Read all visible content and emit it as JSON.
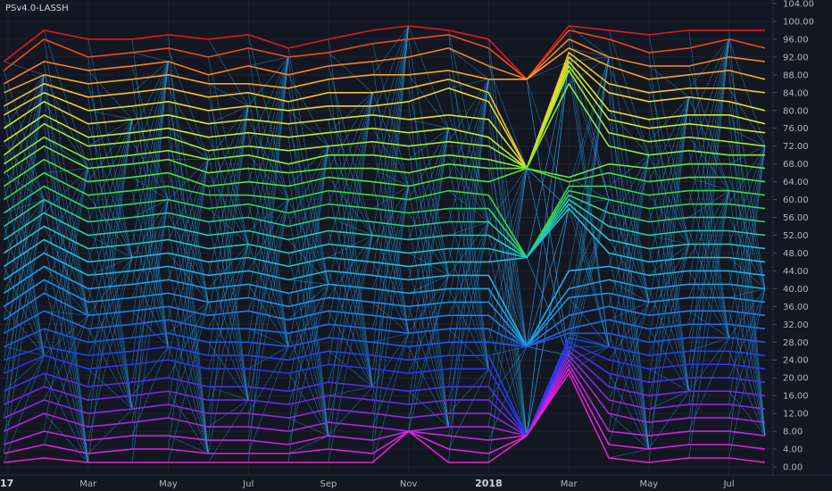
{
  "indicator": {
    "name": "PSv4.0-LASSH"
  },
  "chart_data": {
    "type": "line",
    "title": "",
    "xlabel": "",
    "ylabel": "",
    "ylim": [
      0,
      104
    ],
    "y_ticks": [
      "104.00",
      "100.00",
      "96.00",
      "92.00",
      "88.00",
      "84.00",
      "80.00",
      "76.00",
      "72.00",
      "68.00",
      "64.00",
      "60.00",
      "56.00",
      "52.00",
      "48.00",
      "44.00",
      "40.00",
      "36.00",
      "32.00",
      "28.00",
      "24.00",
      "20.00",
      "16.00",
      "12.00",
      "8.00",
      "4.00",
      "0.00"
    ],
    "x_ticks": [
      {
        "label": "17",
        "t": 0.0,
        "bold": true
      },
      {
        "label": "Mar",
        "t": 2.0,
        "bold": false
      },
      {
        "label": "May",
        "t": 4.0,
        "bold": false
      },
      {
        "label": "Jul",
        "t": 6.0,
        "bold": false
      },
      {
        "label": "Sep",
        "t": 8.0,
        "bold": false
      },
      {
        "label": "Nov",
        "t": 10.0,
        "bold": false
      },
      {
        "label": "2018",
        "t": 12.0,
        "bold": true
      },
      {
        "label": "Mar",
        "t": 14.0,
        "bold": false
      },
      {
        "label": "May",
        "t": 16.0,
        "bold": false
      },
      {
        "label": "Jul",
        "t": 18.0,
        "bold": false
      }
    ],
    "x_range": [
      -0.2,
      19.1
    ],
    "grid": true,
    "legend": "none",
    "background": "#131722",
    "rank_line_color": "#2e9ee8",
    "x": [
      -0.1,
      0.9,
      2.0,
      3.1,
      4.0,
      5.0,
      6.0,
      7.0,
      8.0,
      9.1,
      10.0,
      11.0,
      12.0,
      12.95,
      14.0,
      15.0,
      16.0,
      17.0,
      18.0,
      18.9
    ],
    "series": [
      {
        "values": [
          91,
          98,
          96,
          96,
          97,
          96,
          97,
          94,
          96,
          98,
          99,
          98,
          96,
          87,
          99,
          98,
          97,
          98,
          98,
          98
        ],
        "color": "#e01b1b"
      },
      {
        "values": [
          89,
          96,
          92,
          93,
          94,
          92,
          94,
          92,
          93,
          95,
          96,
          97,
          94,
          87,
          98,
          96,
          93,
          94,
          96,
          94
        ],
        "color": "#f04a1a"
      },
      {
        "values": [
          86,
          91,
          89,
          90,
          91,
          88,
          90,
          88,
          90,
          91,
          92,
          94,
          90,
          87,
          96,
          92,
          90,
          90,
          92,
          91
        ],
        "color": "#f6821f"
      },
      {
        "values": [
          84,
          88,
          86,
          87,
          88,
          86,
          86,
          85,
          87,
          88,
          88,
          89,
          87,
          87,
          94,
          90,
          87,
          88,
          89,
          87
        ],
        "color": "#f5a623"
      },
      {
        "values": [
          81,
          86,
          83,
          84,
          85,
          83,
          84,
          82,
          84,
          84,
          85,
          87,
          84,
          67,
          93,
          86,
          84,
          85,
          85,
          84
        ],
        "color": "#f2c12b"
      },
      {
        "values": [
          79,
          84,
          80,
          81,
          82,
          80,
          81,
          80,
          81,
          81,
          82,
          85,
          82,
          67,
          92,
          84,
          82,
          83,
          82,
          80
        ],
        "color": "#e9d62e"
      },
      {
        "values": [
          76,
          82,
          77,
          78,
          79,
          77,
          78,
          77,
          78,
          79,
          78,
          79,
          78,
          67,
          91,
          80,
          78,
          79,
          79,
          77
        ],
        "color": "#d8e32f"
      },
      {
        "values": [
          73,
          79,
          74,
          75,
          76,
          74,
          75,
          74,
          75,
          76,
          75,
          76,
          74,
          67,
          90,
          78,
          76,
          77,
          76,
          75
        ],
        "color": "#c5e82f"
      },
      {
        "values": [
          70,
          77,
          72,
          73,
          74,
          71,
          72,
          71,
          72,
          73,
          72,
          73,
          72,
          67,
          89,
          75,
          73,
          74,
          73,
          72
        ],
        "color": "#a8e631"
      },
      {
        "values": [
          68,
          74,
          69,
          70,
          71,
          69,
          70,
          68,
          70,
          70,
          69,
          70,
          69,
          67,
          86,
          72,
          70,
          71,
          70,
          70
        ],
        "color": "#8fe434"
      },
      {
        "values": [
          66,
          72,
          67,
          68,
          69,
          66,
          67,
          66,
          67,
          67,
          66,
          68,
          67,
          67,
          65,
          68,
          67,
          68,
          68,
          67
        ],
        "color": "#72e038"
      },
      {
        "values": [
          63,
          69,
          64,
          65,
          66,
          63,
          64,
          63,
          65,
          64,
          63,
          65,
          64,
          67,
          64,
          66,
          64,
          65,
          65,
          64
        ],
        "color": "#55dc3c"
      },
      {
        "values": [
          60,
          66,
          61,
          62,
          63,
          61,
          61,
          60,
          62,
          61,
          60,
          62,
          61,
          47,
          63,
          63,
          61,
          62,
          62,
          61
        ],
        "color": "#3dd44a"
      },
      {
        "values": [
          57,
          63,
          58,
          59,
          60,
          58,
          59,
          57,
          59,
          58,
          57,
          58,
          58,
          47,
          62,
          60,
          58,
          59,
          59,
          58
        ],
        "color": "#2fd266"
      },
      {
        "values": [
          54,
          60,
          55,
          56,
          57,
          55,
          56,
          54,
          56,
          55,
          54,
          55,
          55,
          47,
          61,
          57,
          55,
          56,
          56,
          55
        ],
        "color": "#2bd08a"
      },
      {
        "values": [
          51,
          57,
          52,
          53,
          54,
          52,
          53,
          51,
          53,
          52,
          51,
          52,
          52,
          47,
          60,
          54,
          52,
          53,
          53,
          52
        ],
        "color": "#27cca8"
      },
      {
        "values": [
          48,
          54,
          49,
          50,
          51,
          49,
          50,
          48,
          50,
          49,
          48,
          49,
          49,
          47,
          59,
          51,
          49,
          50,
          50,
          49
        ],
        "color": "#24c8c4"
      },
      {
        "values": [
          45,
          51,
          46,
          47,
          48,
          46,
          47,
          45,
          47,
          46,
          45,
          46,
          46,
          47,
          58,
          48,
          46,
          47,
          47,
          46
        ],
        "color": "#22c0d8"
      },
      {
        "values": [
          42,
          48,
          43,
          44,
          45,
          43,
          44,
          42,
          44,
          43,
          42,
          43,
          43,
          27,
          44,
          45,
          43,
          44,
          44,
          43
        ],
        "color": "#20b2e0"
      },
      {
        "values": [
          39,
          45,
          40,
          41,
          42,
          40,
          41,
          39,
          41,
          40,
          39,
          40,
          40,
          27,
          40,
          42,
          40,
          41,
          41,
          40
        ],
        "color": "#1fa2e3"
      },
      {
        "values": [
          36,
          42,
          37,
          38,
          39,
          37,
          38,
          36,
          38,
          37,
          36,
          37,
          37,
          27,
          38,
          39,
          37,
          38,
          38,
          37
        ],
        "color": "#1f90e6"
      },
      {
        "values": [
          33,
          39,
          34,
          35,
          36,
          34,
          35,
          33,
          35,
          34,
          33,
          34,
          34,
          27,
          34,
          36,
          34,
          35,
          35,
          34
        ],
        "color": "#1f7ee8"
      },
      {
        "values": [
          30,
          35,
          31,
          32,
          33,
          31,
          31,
          30,
          32,
          31,
          30,
          31,
          31,
          27,
          31,
          33,
          31,
          32,
          32,
          31
        ],
        "color": "#1f6ceb"
      },
      {
        "values": [
          27,
          31,
          28,
          29,
          30,
          28,
          28,
          27,
          29,
          28,
          27,
          28,
          28,
          27,
          30,
          30,
          28,
          29,
          29,
          28
        ],
        "color": "#1f58ee"
      },
      {
        "values": [
          24,
          27,
          25,
          26,
          27,
          25,
          25,
          24,
          26,
          25,
          24,
          25,
          25,
          7,
          29,
          27,
          25,
          26,
          26,
          25
        ],
        "color": "#1f44f0"
      },
      {
        "values": [
          21,
          25,
          22,
          23,
          24,
          22,
          22,
          21,
          23,
          22,
          21,
          22,
          22,
          7,
          28,
          24,
          22,
          23,
          23,
          22
        ],
        "color": "#2a34f0"
      },
      {
        "values": [
          17,
          21,
          18,
          19,
          20,
          18,
          18,
          17,
          19,
          18,
          17,
          18,
          18,
          7,
          27,
          21,
          19,
          20,
          20,
          19
        ],
        "color": "#4830ec"
      },
      {
        "values": [
          14,
          18,
          15,
          16,
          17,
          15,
          15,
          14,
          16,
          15,
          14,
          15,
          15,
          7,
          26,
          18,
          16,
          17,
          17,
          16
        ],
        "color": "#6a2ce8"
      },
      {
        "values": [
          11,
          15,
          12,
          13,
          14,
          12,
          12,
          11,
          13,
          12,
          11,
          12,
          12,
          7,
          25,
          15,
          13,
          14,
          14,
          13
        ],
        "color": "#8a2ae4"
      },
      {
        "values": [
          8,
          12,
          9,
          10,
          11,
          9,
          9,
          8,
          10,
          9,
          8,
          9,
          9,
          7,
          24,
          12,
          10,
          11,
          11,
          10
        ],
        "color": "#a828e2"
      },
      {
        "values": [
          5,
          8,
          6,
          7,
          7,
          6,
          6,
          5,
          7,
          6,
          8,
          7,
          6,
          7,
          23,
          8,
          7,
          8,
          8,
          7
        ],
        "color": "#c526e0"
      },
      {
        "values": [
          3,
          5,
          3,
          4,
          4,
          3,
          3,
          3,
          4,
          3,
          8,
          4,
          3,
          7,
          22,
          5,
          4,
          5,
          5,
          4
        ],
        "color": "#dc24de"
      },
      {
        "values": [
          1,
          2,
          1,
          1,
          1,
          1,
          1,
          1,
          1,
          1,
          8,
          1,
          1,
          7,
          21,
          2,
          1,
          2,
          2,
          1
        ],
        "color": "#e622c4"
      }
    ]
  }
}
